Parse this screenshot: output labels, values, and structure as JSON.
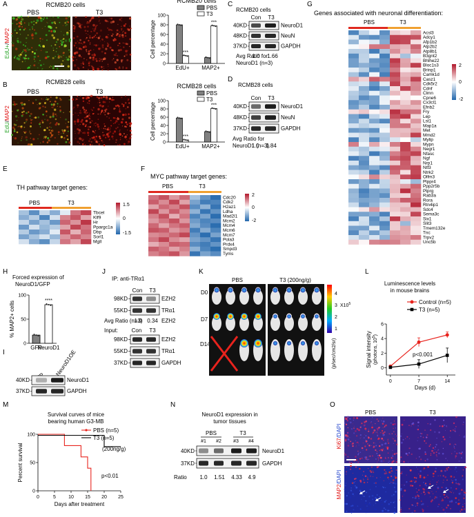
{
  "panels": {
    "A": {
      "letter": "A",
      "cell_title": "RCMB20 cells",
      "left_label": "PBS",
      "right_label": "T3",
      "ylabel_edu": "EdU+",
      "ylabel_sep": "/",
      "ylabel_map": "MAP2",
      "chart_title": "RCMB20 cells",
      "chart_ylabel": "Cell percentage",
      "legend": [
        "PBS",
        "T3"
      ],
      "sig_edu": "***",
      "sig_map": "***"
    },
    "B": {
      "letter": "B",
      "cell_title": "RCMB28 cells",
      "left_label": "PBS",
      "right_label": "T3",
      "ylabel_edu": "EdU",
      "ylabel_sep": "/",
      "ylabel_map": "MAP2",
      "chart_title": "RCMB28 cells",
      "chart_ylabel": "Cell percentage",
      "legend": [
        "PBS",
        "T3"
      ],
      "sig_edu": "***",
      "sig_map": "***"
    },
    "C": {
      "letter": "C",
      "title": "RCMB20 cells",
      "col1": "Con",
      "col2": "T3",
      "bands": [
        {
          "kd": "40KD",
          "name": "NeuroD1"
        },
        {
          "kd": "48KD",
          "name": "NeuN"
        },
        {
          "kd": "37KD",
          "name": "GAPDH"
        }
      ],
      "ratio_label": "Avg Ratio for",
      "ratio_label2": "NeuroD1 (n=3)",
      "ratio_con": "1.0",
      "ratio_t3": "1.66"
    },
    "D": {
      "letter": "D",
      "title": "RCMB28 cells",
      "col1": "Con",
      "col2": "T3",
      "bands": [
        {
          "kd": "40KD",
          "name": "NeuroD1"
        },
        {
          "kd": "48KD",
          "name": "NeuN"
        },
        {
          "kd": "37KD",
          "name": "GAPDH"
        }
      ],
      "ratio_label": "Avg Ratio for",
      "ratio_label2": "NeuroD1 (n=3)",
      "ratio_con": "1.0",
      "ratio_t3": "1.84"
    },
    "E": {
      "letter": "E",
      "title": "TH pathway target genes:",
      "group1": "PBS",
      "group2": "T3",
      "genes": [
        "Tbcel",
        "Klf9",
        "Hr",
        "Ppargc1a",
        "Dbp",
        "Sorl1",
        "Mgll"
      ],
      "scale": [
        "1.5",
        "0",
        "-1.5"
      ]
    },
    "F": {
      "letter": "F",
      "title": "MYC pathway target genes:",
      "group1": "PBS",
      "group2": "T3",
      "genes": [
        "Cdc20",
        "Cdk2",
        "H2az1",
        "Ldha",
        "Mad2l1",
        "Mcm2",
        "Mcm4",
        "Mcm6",
        "Mcm7",
        "Pola3",
        "Prdx4",
        "Smpd3",
        "Tyms"
      ],
      "scale": [
        "2",
        "0",
        "-2"
      ]
    },
    "G": {
      "letter": "G",
      "title": "Genes associated with neuronal differentiation:",
      "group1": "PBS",
      "group2": "T3",
      "genes": [
        "Acsl3",
        "Adcy1",
        "Afp1b2",
        "Atp2b2",
        "Atp8b1",
        "B3gnt2",
        "Bhlhe22",
        "Bloc1s3",
        "Brinp1",
        "Camk1d",
        "Casz1",
        "Cdk5r2",
        "Cdnf",
        "Clmn",
        "Cpne6",
        "Cx3cl1",
        "Efnb2",
        "Fry",
        "Lep",
        "Lst1",
        "Map1a",
        "Met",
        "Mmd2",
        "Mylip",
        "Mypn",
        "Negr1",
        "Nfasc",
        "Ngf",
        "Nrp1",
        "Ntf3",
        "Ntrk2",
        "Olfm3",
        "Plppr4",
        "Ppp2r5b",
        "Ptprg",
        "Rab3a",
        "Rora",
        "Rtn4ip1",
        "Sdc4",
        "Sema3c",
        "Six1",
        "Slit3",
        "Tmem132e",
        "Tnc",
        "Trpv2",
        "Unc5b"
      ],
      "scale": [
        "2",
        "0",
        "-2"
      ]
    },
    "H": {
      "letter": "H",
      "title1": "Forced expression of",
      "title2": "NeuroD1/GFP",
      "ylabel": "% MAP2+ cells",
      "categories": [
        "GFP",
        "NeuroD1"
      ],
      "sig": "****"
    },
    "I": {
      "letter": "I",
      "col1": "GFP",
      "col2": "NeuroD1OE",
      "bands": [
        {
          "kd": "40KD",
          "name": "NeuroD1"
        },
        {
          "kd": "37KD",
          "name": "GAPDH"
        }
      ]
    },
    "J": {
      "letter": "J",
      "ip_title": "IP: anti-TRα1",
      "col1": "Con",
      "col2": "T3",
      "ip_bands": [
        {
          "kd": "98KD",
          "name": "EZH2"
        },
        {
          "kd": "55KD",
          "name": "TRα1"
        }
      ],
      "ratio_text": "Avg Ratio (n=3)",
      "ratio_con": "1.0",
      "ratio_t3": "0.34",
      "ratio_name": "EZH2",
      "input_label": "Input:",
      "input_col1": "Con",
      "input_col2": "T3",
      "input_bands": [
        {
          "kd": "98KD",
          "name": "EZH2"
        },
        {
          "kd": "55KD",
          "name": "TRα1"
        },
        {
          "kd": "37KD",
          "name": "GAPDH"
        }
      ]
    },
    "K": {
      "letter": "K",
      "group1": "PBS",
      "group2": "T3 (200ng/g)",
      "rows": [
        "D0",
        "D7",
        "D14"
      ],
      "scale_ticks": [
        "4",
        "3",
        "2",
        "1"
      ],
      "scale_mult": "X10",
      "scale_exp": "5",
      "scale_unit": "(p/sec/cm2/sr)"
    },
    "L": {
      "letter": "L",
      "title1": "Luminescence levels",
      "title2": "in mouse brains",
      "ylabel": "Signal intensity",
      "ylabel2": "(photons, 10",
      "ylabel_exp": "5",
      "ylabel_close": ")",
      "xlabel": "Days (d)",
      "pval": "p<0.001"
    },
    "M": {
      "letter": "M",
      "title1": "Survival curves of mice",
      "title2": "bearing human G3-MB",
      "ylabel": "Percent survival",
      "xlabel": "Days after treatment",
      "pval": "p<0.01",
      "dose": "(200ng/g)"
    },
    "N": {
      "letter": "N",
      "title1": "NeuroD1 expression in",
      "title2": "tumor tissues",
      "group1": "PBS",
      "group2": "T3",
      "lanes": [
        "#1",
        "#2",
        "#3",
        "#4"
      ],
      "bands": [
        {
          "kd": "40KD",
          "name": "NeuroD1"
        },
        {
          "kd": "37KD",
          "name": "GAPDH"
        }
      ],
      "ratio_label": "Ratio",
      "ratios": [
        "1.0",
        "1.51",
        "4.33",
        "4.9"
      ]
    },
    "O": {
      "letter": "O",
      "col1": "PBS",
      "col2": "T3",
      "row1_a": "Ki67",
      "row1_b": "/DAPI",
      "row2_a": "MAP2",
      "row2_b": "/DAPI"
    }
  },
  "chart_data": [
    {
      "type": "bar",
      "panel": "A",
      "title": "RCMB20 cells",
      "ylabel": "Cell percentage",
      "ylim": [
        0,
        100
      ],
      "categories": [
        "EdU+",
        "MAP2+"
      ],
      "series": [
        {
          "name": "PBS",
          "values": [
            80,
            12
          ],
          "color": "#808080"
        },
        {
          "name": "T3",
          "values": [
            16,
            78
          ],
          "color": "#ffffff"
        }
      ],
      "yticks": [
        0,
        20,
        40,
        60,
        80,
        100
      ]
    },
    {
      "type": "bar",
      "panel": "B",
      "title": "RCMB28 cells",
      "ylabel": "Cell percentage",
      "ylim": [
        0,
        100
      ],
      "categories": [
        "EdU+",
        "MAP2+"
      ],
      "series": [
        {
          "name": "PBS",
          "values": [
            58,
            25
          ],
          "color": "#808080"
        },
        {
          "name": "T3",
          "values": [
            5,
            81
          ],
          "color": "#ffffff"
        }
      ],
      "yticks": [
        0,
        20,
        40,
        60,
        80,
        100
      ]
    },
    {
      "type": "bar",
      "panel": "H",
      "ylabel": "% MAP2+ cells",
      "ylim": [
        0,
        100
      ],
      "categories": [
        "GFP",
        "NeuroD1"
      ],
      "series": [
        {
          "name": "",
          "values": [
            17,
            80
          ]
        }
      ],
      "yticks": [
        0,
        50,
        100
      ]
    },
    {
      "type": "line",
      "panel": "L",
      "ylabel": "Signal intensity (photons, 10^5)",
      "xlabel": "Days (d)",
      "xlim": [
        -1,
        16
      ],
      "ylim": [
        -1,
        6
      ],
      "xticks": [
        0,
        7,
        14
      ],
      "yticks": [
        0,
        2,
        4,
        6
      ],
      "series": [
        {
          "name": "Control (n=5)",
          "x": [
            0,
            7,
            14
          ],
          "y": [
            0.2,
            3.5,
            4.5
          ],
          "err": [
            0.1,
            0.6,
            0.4
          ],
          "color": "#e8231d"
        },
        {
          "name": "T3 (n=5)",
          "x": [
            0,
            7,
            14
          ],
          "y": [
            0.05,
            0.5,
            1.7
          ],
          "err": [
            0.05,
            0.6,
            1.0
          ],
          "color": "#000000"
        }
      ]
    },
    {
      "type": "line",
      "panel": "M",
      "ylabel": "Percent survival",
      "xlabel": "Days after treatment",
      "xlim": [
        0,
        25
      ],
      "ylim": [
        0,
        100
      ],
      "xticks": [
        0,
        5,
        10,
        15,
        20,
        25
      ],
      "yticks": [
        0,
        50,
        100
      ],
      "series": [
        {
          "name": "PBS (n=5)",
          "steps": [
            [
              0,
              100
            ],
            [
              8,
              100
            ],
            [
              8,
              80
            ],
            [
              13,
              80
            ],
            [
              13,
              60
            ],
            [
              15,
              60
            ],
            [
              15,
              40
            ],
            [
              16,
              40
            ],
            [
              16,
              0
            ]
          ],
          "color": "#e8231d"
        },
        {
          "name": "T3 (n=5)",
          "steps": [
            [
              0,
              100
            ],
            [
              20,
              100
            ],
            [
              20,
              80
            ],
            [
              25,
              80
            ]
          ],
          "color": "#000000"
        }
      ]
    },
    {
      "type": "heatmap",
      "panel": "E",
      "rows": 7,
      "cols": 7,
      "values": [
        [
          -0.6,
          -1.1,
          -0.4,
          -0.8,
          -0.2,
          0.9,
          1.2
        ],
        [
          -0.8,
          -0.5,
          -1.2,
          -0.3,
          0.8,
          1.1,
          0.6
        ],
        [
          -0.4,
          -0.9,
          -0.6,
          -1.0,
          1.0,
          0.7,
          1.3
        ],
        [
          -1.0,
          -0.3,
          -0.7,
          -0.5,
          0.6,
          1.2,
          0.9
        ],
        [
          -0.5,
          -1.0,
          -0.8,
          -0.2,
          1.1,
          0.5,
          1.0
        ],
        [
          -0.9,
          -0.6,
          -0.3,
          -0.7,
          0.7,
          1.0,
          0.8
        ],
        [
          -0.3,
          -0.8,
          -1.1,
          -0.4,
          0.9,
          0.6,
          1.2
        ]
      ]
    },
    {
      "type": "heatmap",
      "panel": "F",
      "rows": 13,
      "cols": 7,
      "values": [
        [
          1.2,
          1.5,
          0.9,
          1.3,
          -0.8,
          -1.4,
          -1.9
        ],
        [
          1.4,
          1.0,
          1.6,
          0.8,
          -1.2,
          -1.7,
          -1.6
        ],
        [
          0.8,
          1.3,
          1.1,
          1.5,
          -1.5,
          -1.0,
          -1.8
        ],
        [
          1.6,
          0.9,
          1.4,
          1.0,
          -1.0,
          -1.8,
          -1.4
        ],
        [
          1.1,
          1.5,
          0.7,
          1.2,
          -1.6,
          -1.2,
          -1.9
        ],
        [
          0.9,
          1.2,
          1.5,
          0.9,
          -1.3,
          -1.6,
          -1.5
        ],
        [
          1.3,
          0.8,
          1.2,
          1.4,
          -1.1,
          -1.5,
          -1.9
        ],
        [
          1.5,
          1.4,
          0.9,
          1.1,
          -1.7,
          -1.1,
          -1.6
        ],
        [
          1.0,
          1.1,
          1.3,
          1.6,
          -1.4,
          -1.9,
          -1.2
        ],
        [
          1.2,
          1.6,
          1.0,
          0.8,
          -1.2,
          -1.4,
          -1.8
        ],
        [
          0.7,
          1.0,
          1.4,
          1.3,
          -1.5,
          -1.7,
          -1.4
        ],
        [
          1.4,
          1.2,
          0.8,
          1.1,
          -1.0,
          -1.6,
          -1.9
        ],
        [
          1.1,
          1.3,
          1.5,
          0.9,
          -1.8,
          -1.2,
          -1.5
        ]
      ]
    },
    {
      "type": "heatmap",
      "panel": "G",
      "rows": 46,
      "cols": 7,
      "pattern": "pbs-low-t3-high"
    }
  ]
}
